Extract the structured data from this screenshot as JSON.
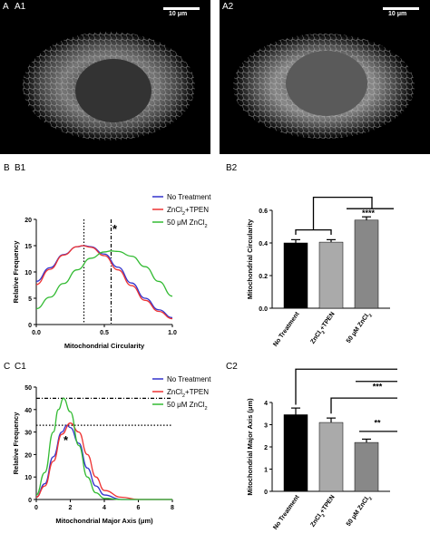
{
  "panels": {
    "A": "A",
    "A1": "A1",
    "A2": "A2",
    "B": "B",
    "B1": "B1",
    "B2": "B2",
    "C": "C",
    "C1": "C1",
    "C2": "C2"
  },
  "scalebar_label": "10 μm",
  "colors": {
    "no_treatment": "#3333cc",
    "zncl2_tpen": "#ee3333",
    "zncl2_50": "#33bb33",
    "bar_black": "#000000",
    "bar_light": "#aaaaaa",
    "bar_mid": "#888888"
  },
  "chart_data": [
    {
      "id": "B1",
      "type": "line",
      "xlabel": "Mitochondrial Circularity",
      "ylabel": "Relative Frequency",
      "xlim": [
        0,
        1
      ],
      "ylim": [
        0,
        20
      ],
      "xticks": [
        "0.0",
        "0.5",
        "1.0"
      ],
      "yticks": [
        "0",
        "5",
        "10",
        "15",
        "20"
      ],
      "series": [
        {
          "name": "No Treatment",
          "x": [
            0,
            0.1,
            0.2,
            0.3,
            0.35,
            0.4,
            0.5,
            0.6,
            0.7,
            0.8,
            0.9,
            1.0
          ],
          "y": [
            8.2,
            10.8,
            13.3,
            14.8,
            15,
            14.8,
            13.4,
            10.9,
            7.9,
            5.0,
            2.8,
            1.3
          ]
        },
        {
          "name": "ZnCl2+TPEN",
          "x": [
            0,
            0.1,
            0.2,
            0.3,
            0.34,
            0.4,
            0.5,
            0.6,
            0.7,
            0.8,
            0.9,
            1.0
          ],
          "y": [
            7.6,
            10.5,
            13.2,
            14.8,
            15,
            14.7,
            13.1,
            10.4,
            7.4,
            4.6,
            2.5,
            1.1
          ]
        },
        {
          "name": "50 μM ZnCl2",
          "x": [
            0,
            0.1,
            0.2,
            0.3,
            0.4,
            0.5,
            0.55,
            0.6,
            0.7,
            0.8,
            0.9,
            1.0
          ],
          "y": [
            3.0,
            5.2,
            7.8,
            10.4,
            12.6,
            13.8,
            14,
            13.9,
            13.0,
            11.0,
            8.2,
            5.4
          ]
        }
      ],
      "vlines": [
        0.35,
        0.55
      ],
      "annotations": [
        "*"
      ],
      "legend": "right"
    },
    {
      "id": "B2",
      "type": "bar",
      "ylabel": "Mitochondrial Circularity",
      "ylim": [
        0,
        0.6
      ],
      "yticks": [
        "0.0",
        "0.2",
        "0.4",
        "0.6"
      ],
      "categories": [
        "No Treatment",
        "ZnCl2+TPEN",
        "50 μM ZnCl2"
      ],
      "values": [
        0.4,
        0.405,
        0.54
      ],
      "errors": [
        0.02,
        0.015,
        0.02
      ],
      "annotations": [
        "****"
      ]
    },
    {
      "id": "C1",
      "type": "line",
      "xlabel": "Mitochondrial Major Axis (μm)",
      "ylabel": "Relative Frequency",
      "xlim": [
        0,
        8
      ],
      "ylim": [
        0,
        50
      ],
      "xticks": [
        "0",
        "2",
        "4",
        "6",
        "8"
      ],
      "yticks": [
        "0",
        "10",
        "20",
        "30",
        "40",
        "50"
      ],
      "series": [
        {
          "name": "No Treatment",
          "x": [
            0,
            0.5,
            1,
            1.5,
            1.8,
            2,
            2.5,
            3,
            3.5,
            4,
            5,
            8
          ],
          "y": [
            1,
            7,
            19,
            30,
            33,
            32,
            25,
            14,
            6,
            2,
            0,
            0
          ]
        },
        {
          "name": "ZnCl2+TPEN",
          "x": [
            0,
            0.5,
            1,
            1.5,
            2,
            2.5,
            3,
            3.5,
            4,
            5,
            6,
            8
          ],
          "y": [
            1,
            6,
            17,
            29,
            34,
            30,
            20,
            10,
            4,
            1,
            0,
            0
          ]
        },
        {
          "name": "50 μM ZnCl2",
          "x": [
            0,
            0.5,
            1,
            1.3,
            1.6,
            2,
            2.5,
            3,
            3.5,
            4,
            5,
            8
          ],
          "y": [
            2,
            12,
            30,
            40,
            45,
            39,
            24,
            10,
            3,
            0.5,
            0,
            0
          ]
        }
      ],
      "hlines": [
        45,
        33
      ],
      "annotations": [
        "*"
      ],
      "legend": "right"
    },
    {
      "id": "C2",
      "type": "bar",
      "ylabel": "Mitochondrial Major Axis (μm)",
      "ylim": [
        0,
        4
      ],
      "yticks": [
        "0",
        "1",
        "2",
        "3",
        "4"
      ],
      "categories": [
        "No Treatment",
        "ZnCl2+TPEN",
        "50 μM ZnCl2"
      ],
      "values": [
        3.45,
        3.1,
        2.2
      ],
      "errors": [
        0.3,
        0.2,
        0.15
      ],
      "annotations": [
        "***",
        "**"
      ]
    }
  ]
}
